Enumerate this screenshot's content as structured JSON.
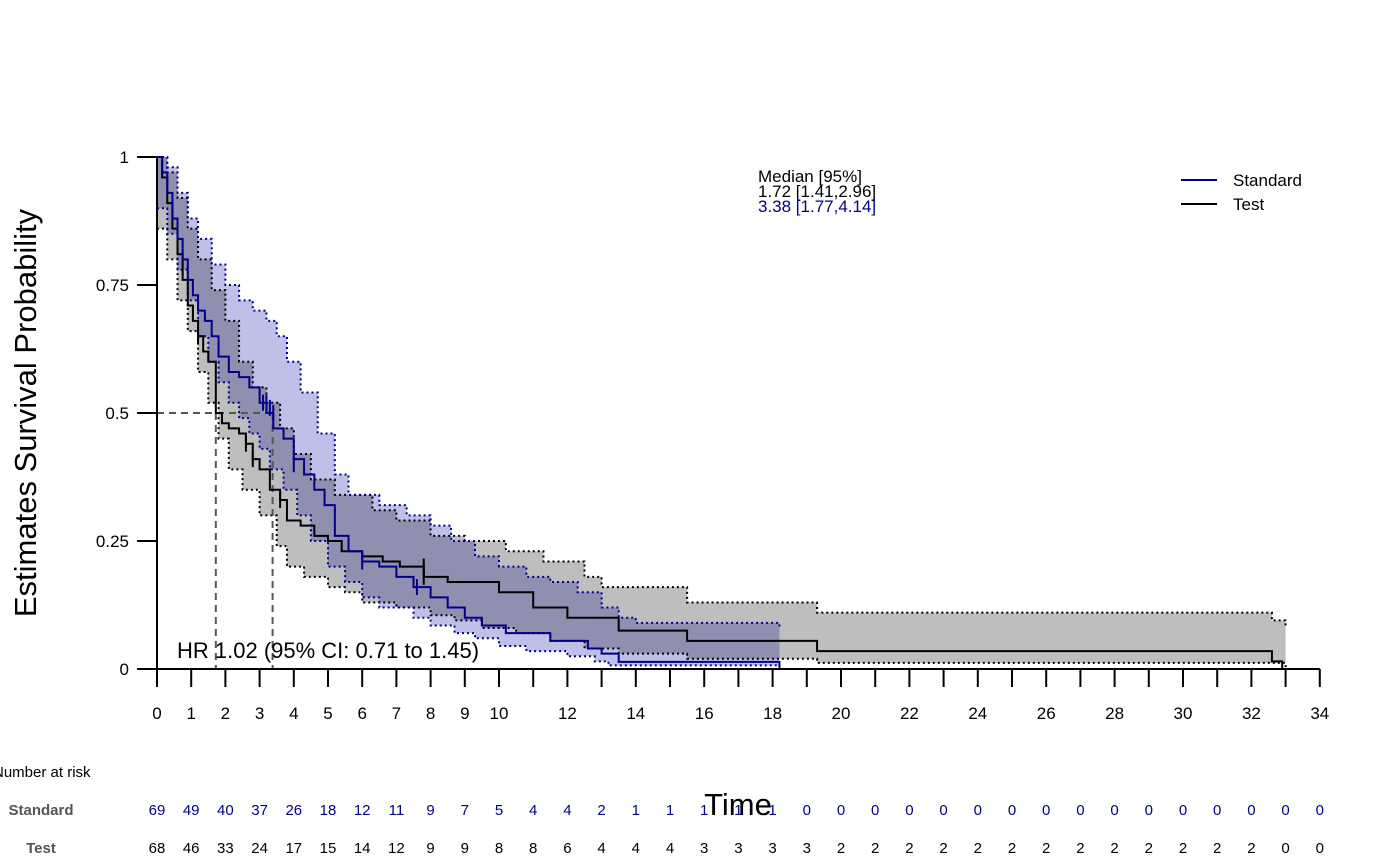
{
  "colors": {
    "standard": "#00008b",
    "test": "#000000",
    "standard_band": "#b3b5e3",
    "test_band": "#bebebe",
    "overlap_band": "#8f8fb0",
    "risk_title": "#555555"
  },
  "chart_data": {
    "type": "line",
    "title": "",
    "xlabel": "Time",
    "ylabel": "Estimates Survival Probability",
    "xlim": [
      0,
      34
    ],
    "ylim": [
      0,
      1
    ],
    "x_ticks": [
      0,
      1,
      2,
      3,
      4,
      5,
      6,
      7,
      8,
      9,
      10,
      12,
      14,
      16,
      18,
      20,
      22,
      24,
      26,
      28,
      30,
      32,
      34
    ],
    "y_ticks": [
      0,
      0.25,
      0.5,
      0.75,
      1
    ],
    "y_tick_labels": [
      "0",
      "0.25",
      "0.5",
      "0.75",
      "1"
    ],
    "legend": {
      "position": "top-right",
      "entries": [
        "Standard",
        "Test"
      ]
    },
    "median_box": {
      "header": "Median [95%]",
      "test_line": "1.72 [1.41,2.96]",
      "standard_line": "3.38 [1.77,4.14]"
    },
    "annotation": "HR 1.02 (95% CI: 0.71 to 1.45)",
    "medians": {
      "standard": 3.38,
      "test": 1.72
    },
    "series": [
      {
        "name": "Standard",
        "steps": [
          [
            0,
            1
          ],
          [
            0.15,
            0.97
          ],
          [
            0.3,
            0.93
          ],
          [
            0.45,
            0.88
          ],
          [
            0.6,
            0.84
          ],
          [
            0.75,
            0.8
          ],
          [
            0.9,
            0.76
          ],
          [
            1.05,
            0.73
          ],
          [
            1.2,
            0.7
          ],
          [
            1.4,
            0.68
          ],
          [
            1.6,
            0.65
          ],
          [
            1.8,
            0.61
          ],
          [
            2.1,
            0.58
          ],
          [
            2.4,
            0.57
          ],
          [
            2.7,
            0.55
          ],
          [
            3.0,
            0.52
          ],
          [
            3.2,
            0.5
          ],
          [
            3.4,
            0.47
          ],
          [
            3.7,
            0.45
          ],
          [
            4.0,
            0.41
          ],
          [
            4.3,
            0.38
          ],
          [
            4.6,
            0.35
          ],
          [
            4.9,
            0.32
          ],
          [
            5.2,
            0.26
          ],
          [
            5.6,
            0.23
          ],
          [
            6.0,
            0.21
          ],
          [
            6.5,
            0.2
          ],
          [
            7.0,
            0.18
          ],
          [
            7.5,
            0.16
          ],
          [
            8.0,
            0.14
          ],
          [
            8.5,
            0.12
          ],
          [
            9.0,
            0.1
          ],
          [
            9.5,
            0.085
          ],
          [
            10.2,
            0.07
          ],
          [
            11.5,
            0.055
          ],
          [
            12.6,
            0.04
          ],
          [
            13.0,
            0.03
          ],
          [
            13.5,
            0.014
          ],
          [
            18.2,
            0
          ]
        ],
        "end": 18.2,
        "ci_upper": [
          [
            0,
            1
          ],
          [
            0.3,
            0.98
          ],
          [
            0.6,
            0.93
          ],
          [
            0.9,
            0.88
          ],
          [
            1.2,
            0.84
          ],
          [
            1.6,
            0.79
          ],
          [
            2.0,
            0.75
          ],
          [
            2.4,
            0.72
          ],
          [
            2.8,
            0.7
          ],
          [
            3.2,
            0.68
          ],
          [
            3.5,
            0.65
          ],
          [
            3.8,
            0.6
          ],
          [
            4.2,
            0.54
          ],
          [
            4.7,
            0.46
          ],
          [
            5.2,
            0.38
          ],
          [
            5.6,
            0.34
          ],
          [
            6.5,
            0.32
          ],
          [
            7.3,
            0.3
          ],
          [
            8.0,
            0.28
          ],
          [
            8.6,
            0.25
          ],
          [
            9.3,
            0.22
          ],
          [
            10.0,
            0.2
          ],
          [
            10.8,
            0.18
          ],
          [
            11.5,
            0.17
          ],
          [
            12.3,
            0.15
          ],
          [
            13.0,
            0.12
          ],
          [
            13.5,
            0.1
          ],
          [
            14.0,
            0.09
          ],
          [
            18.2,
            0.08
          ]
        ],
        "ci_lower": [
          [
            0,
            0.9
          ],
          [
            0.3,
            0.85
          ],
          [
            0.6,
            0.78
          ],
          [
            0.9,
            0.72
          ],
          [
            1.2,
            0.65
          ],
          [
            1.5,
            0.6
          ],
          [
            1.8,
            0.56
          ],
          [
            2.1,
            0.52
          ],
          [
            2.4,
            0.49
          ],
          [
            2.7,
            0.46
          ],
          [
            3.0,
            0.43
          ],
          [
            3.3,
            0.39
          ],
          [
            3.7,
            0.35
          ],
          [
            4.1,
            0.3
          ],
          [
            4.5,
            0.25
          ],
          [
            5.0,
            0.2
          ],
          [
            5.5,
            0.17
          ],
          [
            6.0,
            0.14
          ],
          [
            6.5,
            0.12
          ],
          [
            7.5,
            0.1
          ],
          [
            8.0,
            0.085
          ],
          [
            8.7,
            0.07
          ],
          [
            9.3,
            0.06
          ],
          [
            10.0,
            0.045
          ],
          [
            10.8,
            0.035
          ],
          [
            12.0,
            0.025
          ],
          [
            12.8,
            0.015
          ],
          [
            13.2,
            0.007
          ],
          [
            18.2,
            0
          ]
        ]
      },
      {
        "name": "Test",
        "steps": [
          [
            0,
            1
          ],
          [
            0.15,
            0.96
          ],
          [
            0.3,
            0.91
          ],
          [
            0.45,
            0.86
          ],
          [
            0.6,
            0.81
          ],
          [
            0.75,
            0.76
          ],
          [
            0.9,
            0.71
          ],
          [
            1.05,
            0.68
          ],
          [
            1.2,
            0.65
          ],
          [
            1.35,
            0.62
          ],
          [
            1.5,
            0.6
          ],
          [
            1.72,
            0.5
          ],
          [
            1.9,
            0.48
          ],
          [
            2.1,
            0.47
          ],
          [
            2.4,
            0.46
          ],
          [
            2.6,
            0.44
          ],
          [
            2.8,
            0.41
          ],
          [
            3.0,
            0.39
          ],
          [
            3.3,
            0.35
          ],
          [
            3.6,
            0.33
          ],
          [
            3.8,
            0.29
          ],
          [
            4.2,
            0.28
          ],
          [
            4.6,
            0.26
          ],
          [
            5.0,
            0.25
          ],
          [
            5.4,
            0.23
          ],
          [
            6.0,
            0.22
          ],
          [
            6.6,
            0.21
          ],
          [
            7.1,
            0.2
          ],
          [
            7.8,
            0.18
          ],
          [
            8.5,
            0.17
          ],
          [
            10.0,
            0.15
          ],
          [
            11.0,
            0.12
          ],
          [
            12.0,
            0.1
          ],
          [
            13.5,
            0.075
          ],
          [
            15.5,
            0.055
          ],
          [
            19.3,
            0.035
          ],
          [
            32.6,
            0.015
          ],
          [
            32.9,
            0
          ]
        ],
        "end": 32.9,
        "ci_upper": [
          [
            0,
            1
          ],
          [
            0.3,
            0.97
          ],
          [
            0.6,
            0.92
          ],
          [
            0.9,
            0.86
          ],
          [
            1.2,
            0.8
          ],
          [
            1.6,
            0.74
          ],
          [
            2.0,
            0.68
          ],
          [
            2.4,
            0.6
          ],
          [
            2.8,
            0.55
          ],
          [
            3.2,
            0.52
          ],
          [
            3.6,
            0.47
          ],
          [
            4.0,
            0.42
          ],
          [
            4.5,
            0.37
          ],
          [
            5.2,
            0.34
          ],
          [
            6.3,
            0.31
          ],
          [
            7.0,
            0.29
          ],
          [
            8.0,
            0.26
          ],
          [
            9.0,
            0.25
          ],
          [
            10.2,
            0.23
          ],
          [
            11.3,
            0.21
          ],
          [
            12.5,
            0.18
          ],
          [
            13.0,
            0.16
          ],
          [
            15.5,
            0.13
          ],
          [
            19.3,
            0.11
          ],
          [
            32.6,
            0.095
          ],
          [
            33.0,
            0.085
          ]
        ],
        "ci_lower": [
          [
            0,
            0.86
          ],
          [
            0.3,
            0.8
          ],
          [
            0.6,
            0.72
          ],
          [
            0.9,
            0.66
          ],
          [
            1.2,
            0.58
          ],
          [
            1.5,
            0.52
          ],
          [
            1.8,
            0.45
          ],
          [
            2.1,
            0.39
          ],
          [
            2.5,
            0.35
          ],
          [
            3.0,
            0.3
          ],
          [
            3.5,
            0.24
          ],
          [
            3.8,
            0.2
          ],
          [
            4.3,
            0.18
          ],
          [
            5.0,
            0.16
          ],
          [
            5.5,
            0.15
          ],
          [
            6.0,
            0.13
          ],
          [
            7.0,
            0.12
          ],
          [
            8.0,
            0.105
          ],
          [
            8.7,
            0.095
          ],
          [
            9.5,
            0.08
          ],
          [
            10.5,
            0.07
          ],
          [
            11.5,
            0.055
          ],
          [
            12.5,
            0.04
          ],
          [
            13.5,
            0.03
          ],
          [
            15.5,
            0.02
          ],
          [
            19.3,
            0.012
          ],
          [
            33.0,
            0
          ]
        ]
      }
    ],
    "censor_marks": {
      "standard": [
        [
          3.1,
          0.52
        ],
        [
          3.2,
          0.52
        ],
        [
          3.3,
          0.51
        ],
        [
          3.4,
          0.5
        ],
        [
          4.0,
          0.4
        ],
        [
          6.0,
          0.21
        ],
        [
          7.6,
          0.16
        ]
      ],
      "test": [
        [
          1.2,
          0.65
        ],
        [
          2.6,
          0.44
        ],
        [
          2.8,
          0.41
        ],
        [
          3.6,
          0.33
        ],
        [
          7.8,
          0.2
        ],
        [
          7.8,
          0.18
        ]
      ]
    }
  },
  "risk_table": {
    "title": "Number at risk",
    "times": [
      0,
      1,
      2,
      3,
      4,
      5,
      6,
      7,
      8,
      9,
      10,
      11,
      12,
      13,
      14,
      15,
      16,
      17,
      18,
      19,
      20,
      21,
      22,
      23,
      24,
      25,
      26,
      27,
      28,
      29,
      30,
      31,
      32,
      33,
      34
    ],
    "rows": [
      {
        "label": "Standard",
        "values": [
          "69",
          "49",
          "40",
          "37",
          "26",
          "18",
          "12",
          "11",
          "9",
          "7",
          "5",
          "4",
          "4",
          "2",
          "1",
          "1",
          "1",
          "1",
          "1",
          "0",
          "0",
          "0",
          "0",
          "0",
          "0",
          "0",
          "0",
          "0",
          "0",
          "0",
          "0",
          "0",
          "0",
          "0",
          "0"
        ]
      },
      {
        "label": "Test",
        "values": [
          "68",
          "46",
          "33",
          "24",
          "17",
          "15",
          "14",
          "12",
          "9",
          "9",
          "8",
          "8",
          "6",
          "4",
          "4",
          "4",
          "3",
          "3",
          "3",
          "3",
          "2",
          "2",
          "2",
          "2",
          "2",
          "2",
          "2",
          "2",
          "2",
          "2",
          "2",
          "2",
          "2",
          "0",
          "0"
        ]
      }
    ]
  }
}
